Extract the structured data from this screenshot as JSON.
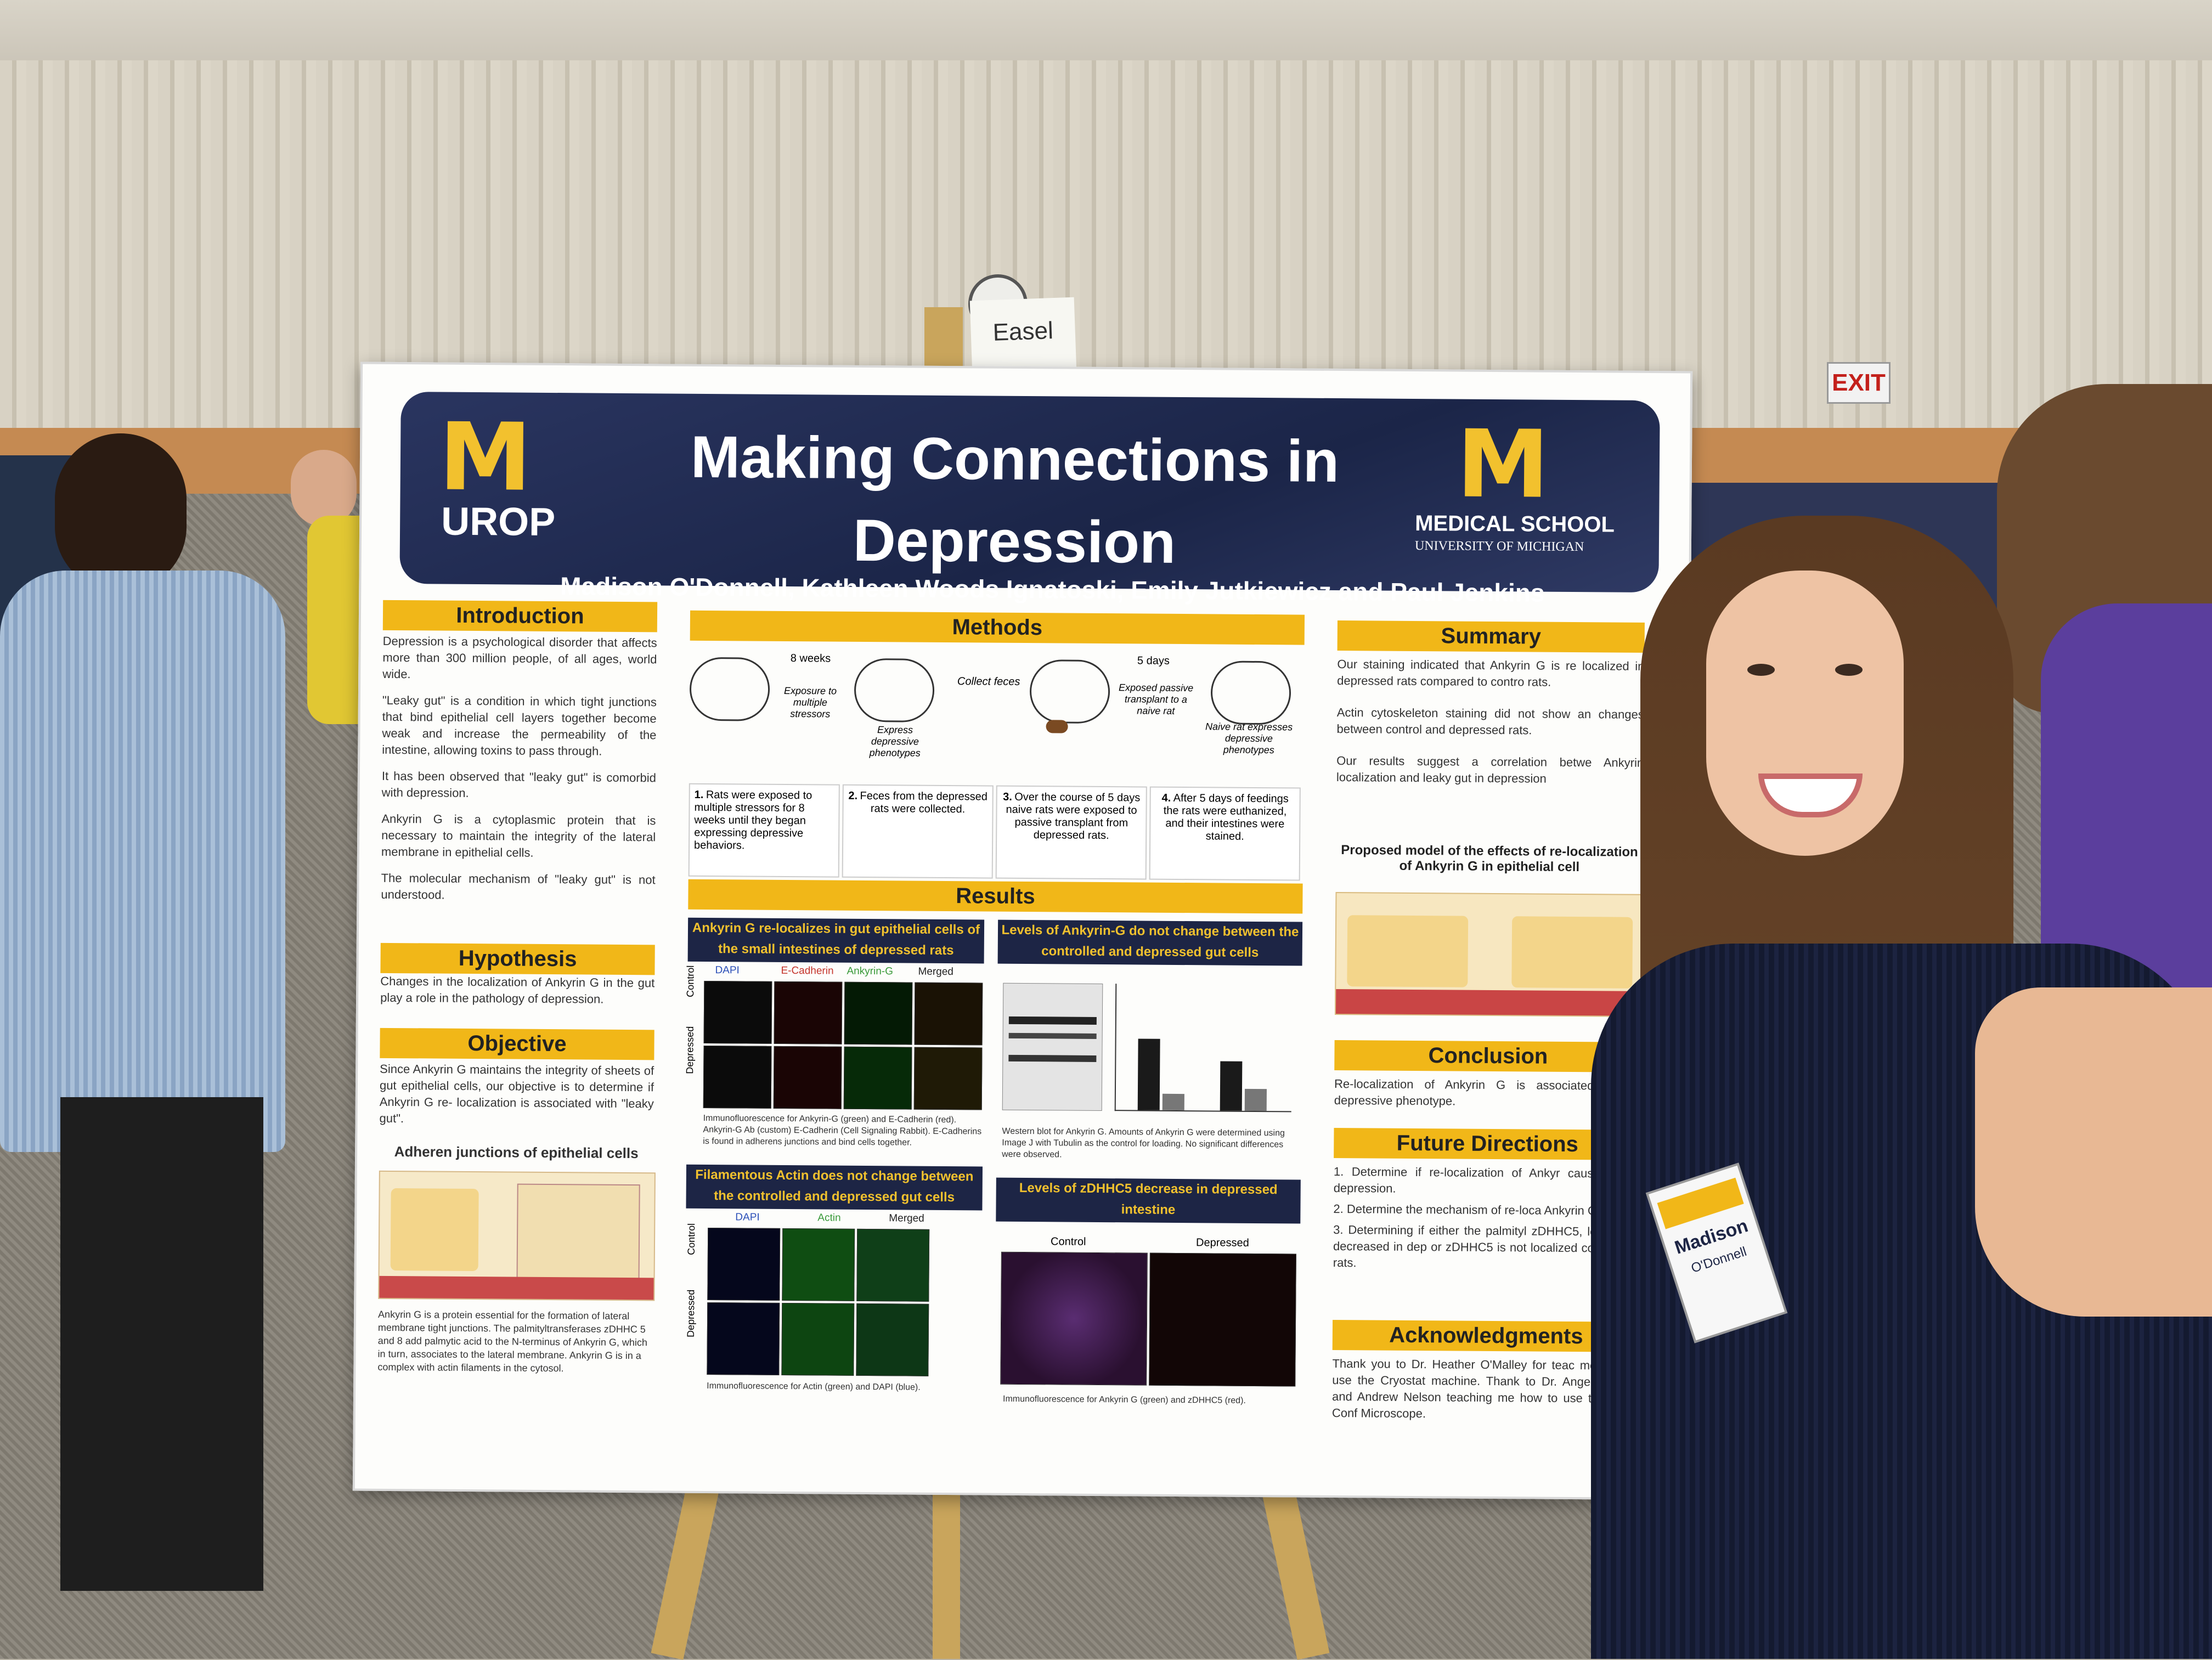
{
  "scene": {
    "easel_note": "Easel",
    "exit_sign": "EXIT"
  },
  "poster": {
    "left_logo_mark": "M",
    "left_logo_label": "UROP",
    "right_logo_mark": "M",
    "right_logo_label": "MEDICAL SCHOOL",
    "right_logo_sub": "UNIVERSITY OF MICHIGAN",
    "title": "Making Connections in Depression",
    "authors": "Madison O'Donnell, Kathleen Woods Ignatoski, Emily Jutkiewicz and Paul Jenkins",
    "introduction": {
      "heading": "Introduction",
      "p1": "Depression is a psychological disorder that affects more than 300 million people, of all ages, world wide.",
      "p2": "\"Leaky gut\" is a condition in which tight junctions that bind epithelial cell layers together become weak and increase the permeability of the intestine, allowing toxins to pass through.",
      "p3": "It has been observed that \"leaky gut\" is comorbid with depression.",
      "p4": "Ankyrin G is a cytoplasmic protein that is necessary to maintain the integrity of the lateral membrane in epithelial cells.",
      "p5": "The molecular mechanism of \"leaky gut\" is not understood."
    },
    "hypothesis": {
      "heading": "Hypothesis",
      "text": "Changes in the localization of Ankyrin G in the gut play a role in the pathology of depression."
    },
    "objective": {
      "heading": "Objective",
      "text": "Since Ankyrin G maintains the integrity of sheets of gut epithelial cells, our objective is to determine if Ankyrin G re- localization is associated with \"leaky gut\"."
    },
    "adheren": {
      "heading": "Adheren junctions of epithelial cells",
      "caption": "Ankyrin G is a protein essential for the formation of lateral membrane tight junctions. The palmityltransferases zDHHC 5 and 8 add palmytic acid to the N-terminus of Ankyrin G, which in turn, associates to the lateral membrane. Ankyrin G is in a complex with actin filaments in the cytosol."
    },
    "methods": {
      "heading": "Methods",
      "flow": [
        {
          "above": "8 weeks",
          "below": "Exposure to multiple stressors"
        },
        {
          "above": "",
          "below": "Express depressive phenotypes"
        },
        {
          "above": "",
          "below": "Collect feces"
        },
        {
          "above": "5 days",
          "below": "Exposed passive transplant to a naive rat"
        },
        {
          "above": "",
          "below": "Naive rat expresses depressive phenotypes"
        }
      ],
      "steps": [
        {
          "num": "1.",
          "text": "Rats were exposed to multiple stressors for 8 weeks until they began expressing depressive behaviors."
        },
        {
          "num": "2.",
          "text": "Feces from the depressed rats were collected."
        },
        {
          "num": "3.",
          "text": "Over the course of 5 days naive rats were exposed to passive transplant from depressed rats."
        },
        {
          "num": "4.",
          "text": "After 5 days of feedings the rats were euthanized, and their intestines were stained."
        }
      ]
    },
    "results": {
      "heading": "Results",
      "panel1": {
        "heading": "Ankyrin G re-localizes in gut epithelial cells of the small intestines of depressed rats",
        "columns": [
          "DAPI",
          "E-Cadherin",
          "Ankyrin-G",
          "Merged"
        ],
        "rows": [
          "Control",
          "Depressed"
        ],
        "caption": "Immunofluorescence for Ankyrin-G (green) and E-Cadherin (red). Ankyrin-G Ab (custom) E-Cadherin (Cell Signaling Rabbit). E-Cadherins is found in adherens junctions and bind cells together."
      },
      "panel2": {
        "heading": "Levels of Ankyrin-G do not change between the controlled and depressed gut cells",
        "caption": "Western blot for Ankyrin G. Amounts of Ankyrin G were determined using Image J with Tubulin as the control for loading. No significant differences were observed."
      },
      "panel3": {
        "heading": "Filamentous Actin does not change between the controlled and depressed gut cells",
        "columns": [
          "DAPI",
          "Actin",
          "Merged"
        ],
        "rows": [
          "Control",
          "Depressed"
        ],
        "caption": "Immunofluorescence for Actin (green) and DAPI (blue)."
      },
      "panel4": {
        "heading": "Levels of zDHHC5 decrease in depressed intestine",
        "columns": [
          "Control",
          "Depressed"
        ],
        "caption": "Immunofluorescence for Ankyrin G (green) and zDHHC5 (red)."
      }
    },
    "summary": {
      "heading": "Summary",
      "p1": "Our staining indicated that Ankyrin G is re localized in depressed rats compared to contro rats.",
      "p2": "Actin cytoskeleton staining did not show an changes between control and depressed rats.",
      "p3": "Our results suggest a correlation betwe Ankyrin localization and leaky gut in depression",
      "model_heading": "Proposed model of the effects of re-localization of Ankyrin G in epithelial cell"
    },
    "conclusion": {
      "heading": "Conclusion",
      "text": "Re-localization of Ankyrin G is associated w the depressive phenotype."
    },
    "future": {
      "heading": "Future Directions",
      "items": [
        "1. Determine if re-localization of Ankyr causative for depression.",
        "2. Determine the mechanism of re-loca Ankyrin G.",
        "3. Determining if either the palmityl zDHHC5, levels are decreased in dep or zDHHC5 is not localized correctly in rats."
      ]
    },
    "acknowledgments": {
      "heading": "Acknowledgments",
      "text": "Thank you to Dr. Heather O'Malley for teac me how to use the Cryostat machine. Thank to Dr. Angela Carter and Andrew Nelson teaching me how to use the Zeiss Conf Microscope."
    }
  },
  "badge": {
    "name": "Madison",
    "surname": "O'Donnell"
  },
  "colors": {
    "banner_navy": "#1b2548",
    "maize": "#f1b718"
  }
}
